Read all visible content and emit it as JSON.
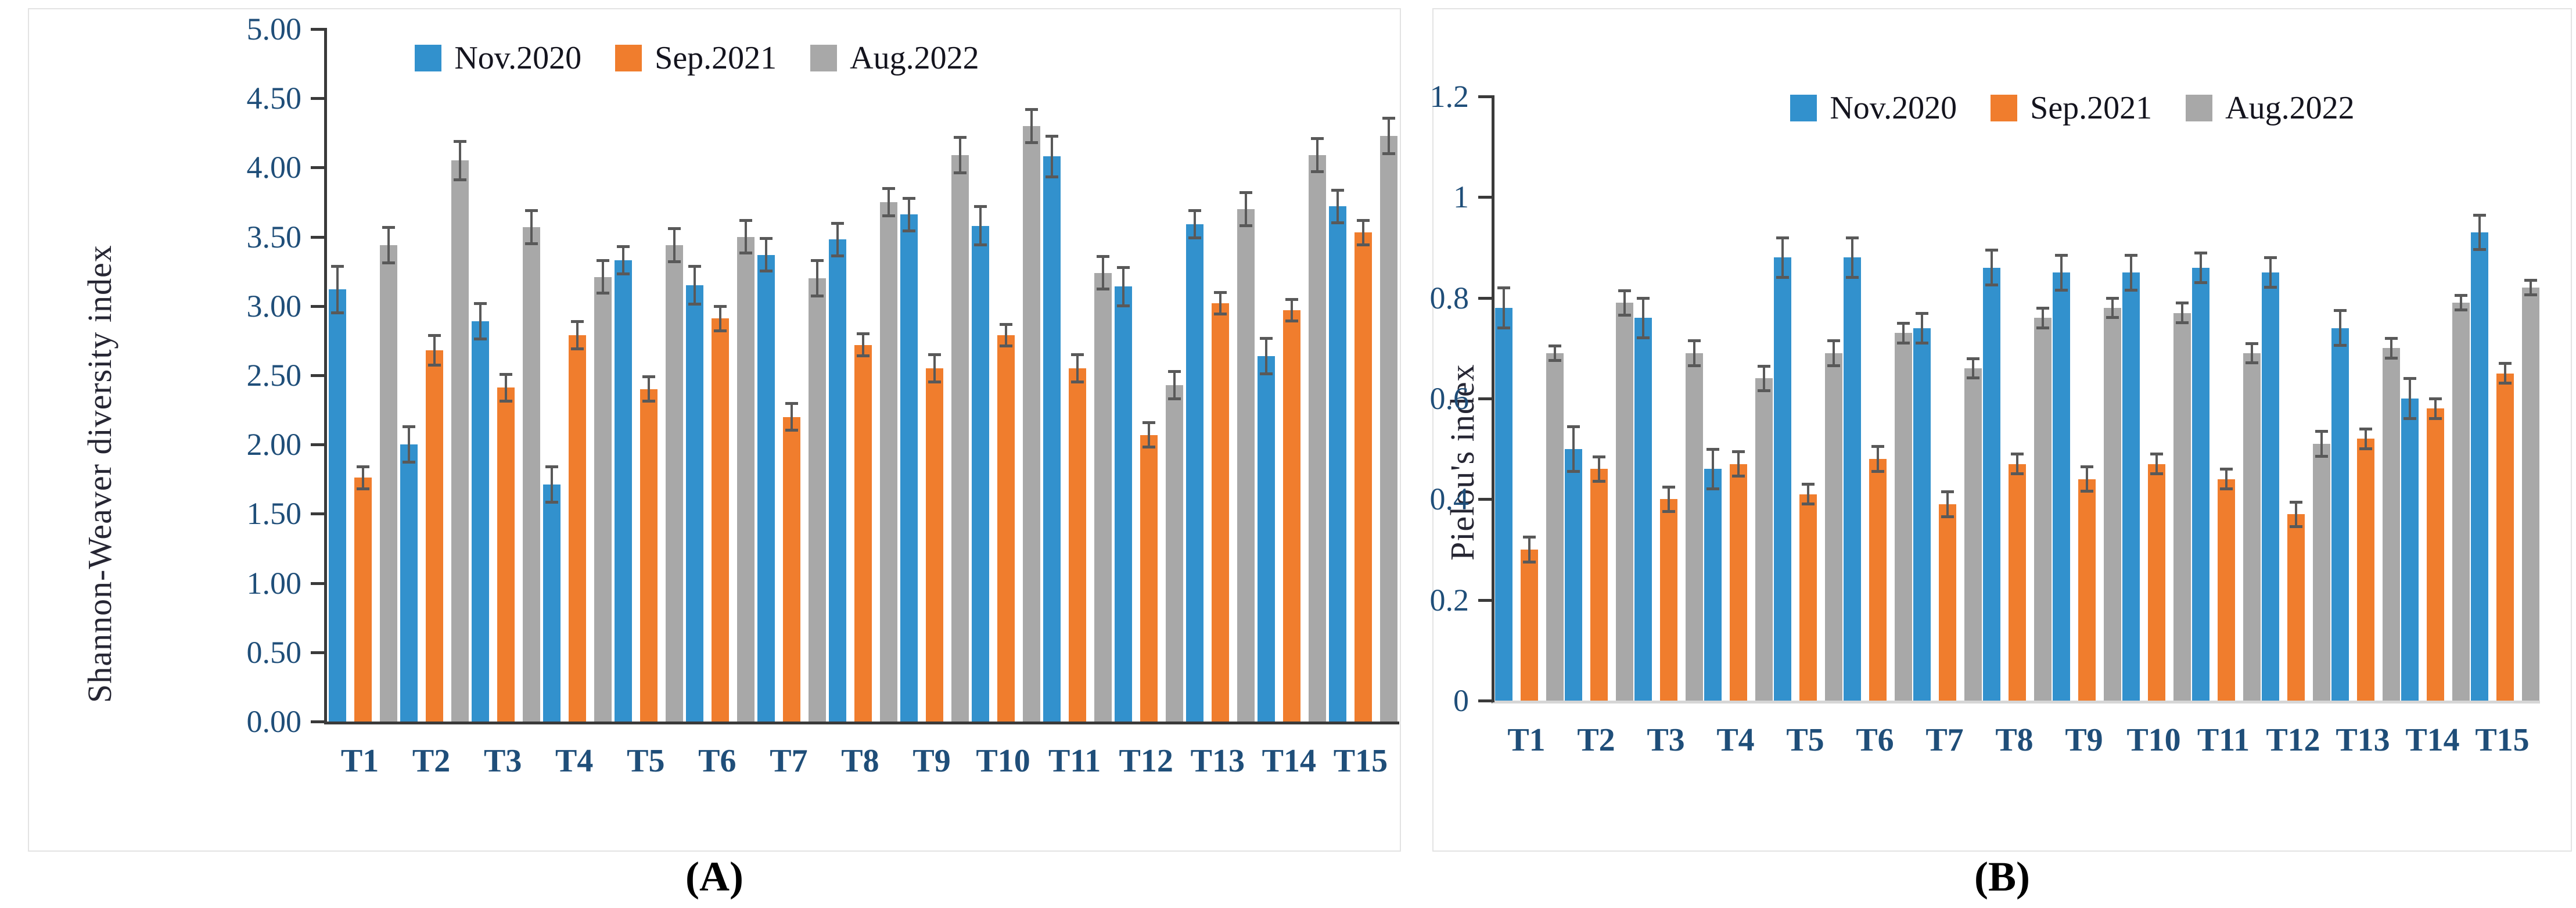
{
  "chart_data": [
    {
      "type": "bar",
      "panel": "A",
      "caption": "(A)",
      "title": "",
      "xlabel": "",
      "ylabel": "Shannon-Weaver diversity index",
      "ylim": [
        0,
        5
      ],
      "grid": false,
      "legend_position": "top-center",
      "yticks": [
        {
          "value": 0.0,
          "label": "0.00"
        },
        {
          "value": 0.5,
          "label": "0.50"
        },
        {
          "value": 1.0,
          "label": "1.00"
        },
        {
          "value": 1.5,
          "label": "1.50"
        },
        {
          "value": 2.0,
          "label": "2.00"
        },
        {
          "value": 2.5,
          "label": "2.50"
        },
        {
          "value": 3.0,
          "label": "3.00"
        },
        {
          "value": 3.5,
          "label": "3.50"
        },
        {
          "value": 4.0,
          "label": "4.00"
        },
        {
          "value": 4.5,
          "label": "4.50"
        },
        {
          "value": 5.0,
          "label": "5.00"
        }
      ],
      "categories": [
        "T1",
        "T2",
        "T3",
        "T4",
        "T5",
        "T6",
        "T7",
        "T8",
        "T9",
        "T10",
        "T11",
        "T12",
        "T13",
        "T14",
        "T15"
      ],
      "series": [
        {
          "name": "Nov.2020",
          "color": "#3291cd",
          "values": [
            3.12,
            2.0,
            2.89,
            1.71,
            3.33,
            3.15,
            3.37,
            3.48,
            3.66,
            3.58,
            4.08,
            3.14,
            3.59,
            2.64,
            3.72
          ],
          "errors": [
            0.17,
            0.13,
            0.13,
            0.13,
            0.1,
            0.14,
            0.12,
            0.12,
            0.12,
            0.14,
            0.15,
            0.14,
            0.1,
            0.13,
            0.12
          ]
        },
        {
          "name": "Sep.2021",
          "color": "#f07d2d",
          "values": [
            1.76,
            2.68,
            2.41,
            2.79,
            2.4,
            2.91,
            2.2,
            2.72,
            2.55,
            2.79,
            2.55,
            2.07,
            3.02,
            2.97,
            3.53
          ],
          "errors": [
            0.08,
            0.11,
            0.1,
            0.1,
            0.09,
            0.09,
            0.1,
            0.08,
            0.1,
            0.08,
            0.1,
            0.09,
            0.08,
            0.08,
            0.09
          ]
        },
        {
          "name": "Aug.2022",
          "color": "#a8a8a8",
          "values": [
            3.44,
            4.05,
            3.57,
            3.21,
            3.44,
            3.5,
            3.2,
            3.75,
            4.09,
            4.3,
            3.24,
            2.43,
            3.7,
            4.09,
            4.23
          ],
          "errors": [
            0.13,
            0.14,
            0.12,
            0.12,
            0.12,
            0.12,
            0.13,
            0.1,
            0.13,
            0.12,
            0.12,
            0.1,
            0.12,
            0.12,
            0.13
          ]
        }
      ]
    },
    {
      "type": "bar",
      "panel": "B",
      "caption": "(B)",
      "title": "",
      "xlabel": "",
      "ylabel": "Pielou's index",
      "ylim": [
        0,
        1.2
      ],
      "grid": false,
      "legend_position": "top-center",
      "yticks": [
        {
          "value": 0.0,
          "label": "0"
        },
        {
          "value": 0.2,
          "label": "0.2"
        },
        {
          "value": 0.4,
          "label": "0.4"
        },
        {
          "value": 0.6,
          "label": "0.6"
        },
        {
          "value": 0.8,
          "label": "0.8"
        },
        {
          "value": 1.0,
          "label": "1"
        },
        {
          "value": 1.2,
          "label": "1.2"
        }
      ],
      "categories": [
        "T1",
        "T2",
        "T3",
        "T4",
        "T5",
        "T6",
        "T7",
        "T8",
        "T9",
        "T10",
        "T11",
        "T12",
        "T13",
        "T14",
        "T15"
      ],
      "series": [
        {
          "name": "Nov.2020",
          "color": "#3291cd",
          "values": [
            0.78,
            0.5,
            0.76,
            0.46,
            0.88,
            0.88,
            0.74,
            0.86,
            0.85,
            0.85,
            0.86,
            0.85,
            0.74,
            0.6,
            0.93
          ],
          "errors": [
            0.04,
            0.045,
            0.04,
            0.04,
            0.04,
            0.04,
            0.03,
            0.035,
            0.035,
            0.035,
            0.03,
            0.03,
            0.035,
            0.04,
            0.035
          ]
        },
        {
          "name": "Sep.2021",
          "color": "#f07d2d",
          "values": [
            0.3,
            0.46,
            0.4,
            0.47,
            0.41,
            0.48,
            0.39,
            0.47,
            0.44,
            0.47,
            0.44,
            0.37,
            0.52,
            0.58,
            0.65
          ],
          "errors": [
            0.025,
            0.025,
            0.025,
            0.025,
            0.02,
            0.025,
            0.025,
            0.02,
            0.025,
            0.02,
            0.02,
            0.025,
            0.02,
            0.02,
            0.02
          ]
        },
        {
          "name": "Aug.2022",
          "color": "#a8a8a8",
          "values": [
            0.69,
            0.79,
            0.69,
            0.64,
            0.69,
            0.73,
            0.66,
            0.76,
            0.78,
            0.77,
            0.69,
            0.51,
            0.7,
            0.79,
            0.82
          ],
          "errors": [
            0.015,
            0.025,
            0.025,
            0.025,
            0.025,
            0.02,
            0.02,
            0.02,
            0.02,
            0.02,
            0.02,
            0.025,
            0.02,
            0.015,
            0.015
          ]
        }
      ]
    }
  ]
}
